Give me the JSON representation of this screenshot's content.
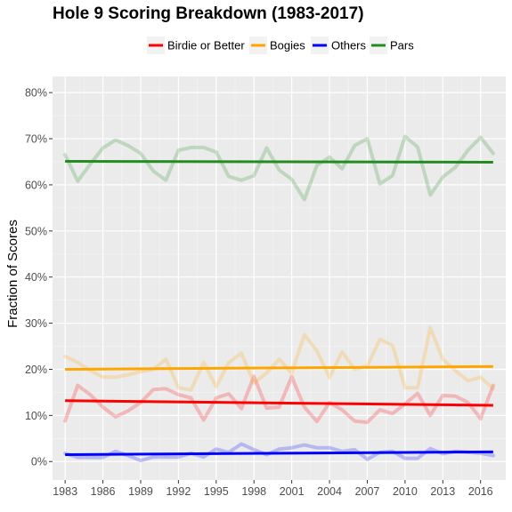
{
  "chart_data": {
    "type": "line",
    "title": "Hole 9 Scoring Breakdown (1983-2017)",
    "xlabel": "",
    "ylabel": "Fraction of Scores",
    "xlim": [
      1982,
      2018
    ],
    "ylim": [
      -0.04,
      0.835
    ],
    "x_ticks": [
      1983,
      1986,
      1989,
      1992,
      1995,
      1998,
      2001,
      2004,
      2007,
      2010,
      2013,
      2016
    ],
    "x_tick_labels": [
      "1983",
      "1986",
      "1989",
      "1992",
      "1995",
      "1998",
      "2001",
      "2004",
      "2007",
      "2010",
      "2013",
      "2016"
    ],
    "y_ticks": [
      0,
      0.1,
      0.2,
      0.3,
      0.4,
      0.5,
      0.6,
      0.7,
      0.8
    ],
    "y_tick_labels": [
      "0%",
      "10%",
      "20%",
      "30%",
      "40%",
      "50%",
      "60%",
      "70%",
      "80%"
    ],
    "grid": true,
    "legend_position": "top",
    "x": [
      1983,
      1984,
      1985,
      1986,
      1987,
      1988,
      1989,
      1990,
      1991,
      1992,
      1993,
      1994,
      1995,
      1996,
      1997,
      1998,
      1999,
      2000,
      2001,
      2002,
      2003,
      2004,
      2005,
      2006,
      2007,
      2008,
      2009,
      2010,
      2011,
      2012,
      2013,
      2014,
      2015,
      2016,
      2017
    ],
    "series": [
      {
        "name": "Birdie or Better",
        "color": "#ff0000",
        "values": [
          0.088,
          0.165,
          0.145,
          0.118,
          0.097,
          0.11,
          0.128,
          0.156,
          0.158,
          0.145,
          0.138,
          0.09,
          0.138,
          0.147,
          0.115,
          0.185,
          0.116,
          0.118,
          0.184,
          0.118,
          0.087,
          0.128,
          0.112,
          0.088,
          0.085,
          0.112,
          0.104,
          0.125,
          0.148,
          0.1,
          0.143,
          0.142,
          0.128,
          0.093,
          0.165
        ],
        "trend": [
          0.132,
          0.122
        ]
      },
      {
        "name": "Bogies",
        "color": "#ffa500",
        "values": [
          0.228,
          0.215,
          0.197,
          0.183,
          0.183,
          0.188,
          0.195,
          0.2,
          0.222,
          0.16,
          0.155,
          0.215,
          0.162,
          0.215,
          0.235,
          0.17,
          0.192,
          0.222,
          0.192,
          0.275,
          0.24,
          0.182,
          0.238,
          0.2,
          0.207,
          0.265,
          0.252,
          0.16,
          0.16,
          0.29,
          0.222,
          0.197,
          0.175,
          0.183,
          0.158
        ],
        "trend": [
          0.2,
          0.206
        ]
      },
      {
        "name": "Others",
        "color": "#0000ff",
        "values": [
          0.018,
          0.009,
          0.009,
          0.009,
          0.022,
          0.013,
          0.002,
          0.01,
          0.01,
          0.01,
          0.018,
          0.01,
          0.027,
          0.02,
          0.038,
          0.026,
          0.015,
          0.027,
          0.03,
          0.036,
          0.03,
          0.03,
          0.022,
          0.026,
          0.005,
          0.02,
          0.022,
          0.007,
          0.007,
          0.028,
          0.017,
          0.022,
          0.02,
          0.018,
          0.013
        ],
        "trend": [
          0.015,
          0.021
        ]
      },
      {
        "name": "Pars",
        "color": "#228b22",
        "values": [
          0.665,
          0.608,
          0.645,
          0.68,
          0.697,
          0.685,
          0.668,
          0.63,
          0.61,
          0.675,
          0.681,
          0.681,
          0.671,
          0.618,
          0.61,
          0.62,
          0.68,
          0.632,
          0.612,
          0.568,
          0.642,
          0.66,
          0.635,
          0.685,
          0.7,
          0.602,
          0.62,
          0.705,
          0.682,
          0.578,
          0.617,
          0.638,
          0.675,
          0.703,
          0.668
        ],
        "trend": [
          0.651,
          0.649
        ]
      }
    ]
  }
}
